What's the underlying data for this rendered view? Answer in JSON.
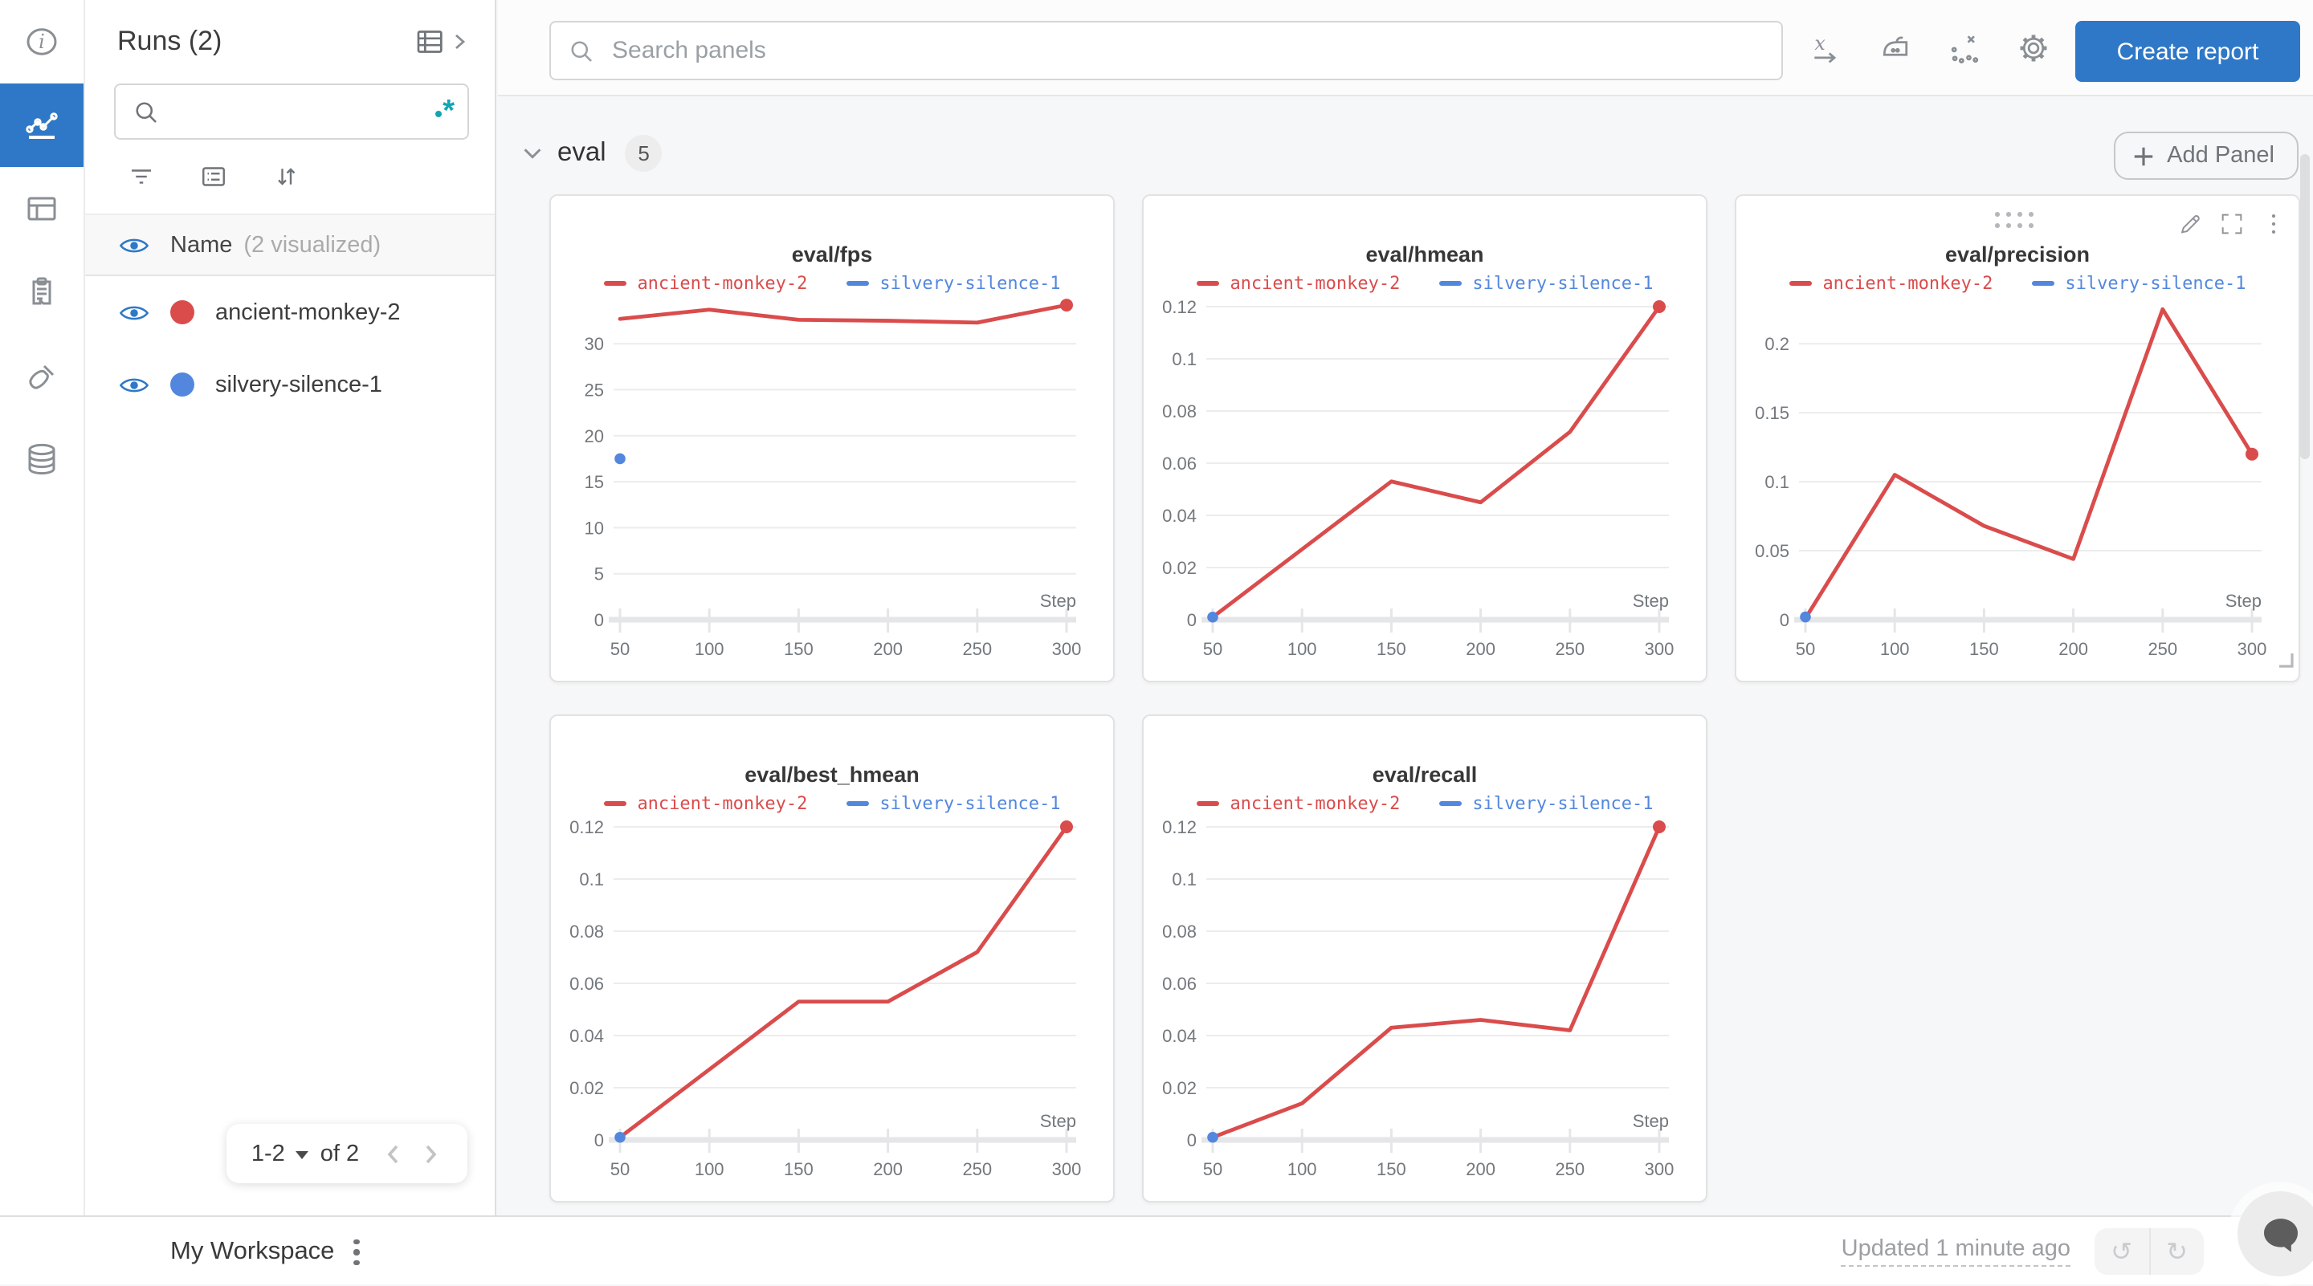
{
  "colors": {
    "accent_blue": "#2e78c7",
    "run_red": "#DA4C4C",
    "run_blue": "#5387DD",
    "regex_teal": "#12a5b2"
  },
  "rail": {
    "items": [
      "info",
      "charts",
      "table",
      "clipboard",
      "brush",
      "database"
    ],
    "active_index": 1
  },
  "runs_panel": {
    "title": "Runs (2)",
    "search_value": "",
    "header": {
      "name_label": "Name",
      "visualized_label": "(2 visualized)"
    },
    "runs": [
      {
        "name": "ancient-monkey-2",
        "color": "#DA4C4C"
      },
      {
        "name": "silvery-silence-1",
        "color": "#5387DD"
      }
    ],
    "pagination": {
      "range_label": "1-2",
      "of_label": "of 2"
    }
  },
  "topbar": {
    "search_placeholder": "Search panels",
    "create_report_label": "Create report"
  },
  "section": {
    "label": "eval",
    "count": "5",
    "add_panel_label": "Add Panel"
  },
  "chart_data": [
    {
      "type": "line",
      "title": "eval/fps",
      "xlabel": "Step",
      "x_ticks": [
        50,
        100,
        150,
        200,
        250,
        300
      ],
      "xlim": [
        50,
        300
      ],
      "y_ticks": [
        "0",
        "5",
        "10",
        "15",
        "20",
        "25",
        "30"
      ],
      "ylim": [
        0,
        36.3
      ],
      "grid": true,
      "legend_position": "top",
      "hovered": false,
      "series": [
        {
          "name": "ancient-monkey-2",
          "color": "#DA4C4C",
          "x": [
            50,
            100,
            150,
            200,
            250,
            300
          ],
          "y": [
            32.7,
            33.7,
            32.6,
            32.5,
            32.3,
            34.2
          ],
          "end_dot": true
        },
        {
          "name": "silvery-silence-1",
          "color": "#5387DD",
          "x": [
            50
          ],
          "y": [
            17.5
          ],
          "points_only": true
        }
      ]
    },
    {
      "type": "line",
      "title": "eval/hmean",
      "xlabel": "Step",
      "x_ticks": [
        50,
        100,
        150,
        200,
        250,
        300
      ],
      "xlim": [
        50,
        300
      ],
      "y_ticks": [
        "0",
        "0.02",
        "0.04",
        "0.06",
        "0.08",
        "0.1",
        "0.12"
      ],
      "ylim": [
        0,
        0.128
      ],
      "grid": true,
      "legend_position": "top",
      "hovered": false,
      "series": [
        {
          "name": "ancient-monkey-2",
          "color": "#DA4C4C",
          "x": [
            50,
            100,
            150,
            200,
            250,
            300
          ],
          "y": [
            0.001,
            0.027,
            0.053,
            0.045,
            0.072,
            0.12
          ],
          "end_dot": true
        },
        {
          "name": "silvery-silence-1",
          "color": "#5387DD",
          "x": [
            50
          ],
          "y": [
            0.001
          ],
          "points_only": true
        }
      ]
    },
    {
      "type": "line",
      "title": "eval/precision",
      "xlabel": "Step",
      "x_ticks": [
        50,
        100,
        150,
        200,
        250,
        300
      ],
      "xlim": [
        50,
        300
      ],
      "y_ticks": [
        "0",
        "0.05",
        "0.1",
        "0.15",
        "0.2"
      ],
      "ylim": [
        0,
        0.242
      ],
      "grid": true,
      "legend_position": "top",
      "hovered": true,
      "series": [
        {
          "name": "ancient-monkey-2",
          "color": "#DA4C4C",
          "x": [
            50,
            100,
            150,
            200,
            250,
            300
          ],
          "y": [
            0.001,
            0.105,
            0.068,
            0.044,
            0.225,
            0.12
          ],
          "end_dot": true
        },
        {
          "name": "silvery-silence-1",
          "color": "#5387DD",
          "x": [
            50
          ],
          "y": [
            0.002
          ],
          "points_only": true
        }
      ]
    },
    {
      "type": "line",
      "title": "eval/best_hmean",
      "xlabel": "Step",
      "x_ticks": [
        50,
        100,
        150,
        200,
        250,
        300
      ],
      "xlim": [
        50,
        300
      ],
      "y_ticks": [
        "0",
        "0.02",
        "0.04",
        "0.06",
        "0.08",
        "0.1",
        "0.12"
      ],
      "ylim": [
        0,
        0.128
      ],
      "grid": true,
      "legend_position": "top",
      "hovered": false,
      "series": [
        {
          "name": "ancient-monkey-2",
          "color": "#DA4C4C",
          "x": [
            50,
            100,
            150,
            200,
            250,
            300
          ],
          "y": [
            0.001,
            0.027,
            0.053,
            0.053,
            0.072,
            0.12
          ],
          "end_dot": true
        },
        {
          "name": "silvery-silence-1",
          "color": "#5387DD",
          "x": [
            50
          ],
          "y": [
            0.001
          ],
          "points_only": true
        }
      ]
    },
    {
      "type": "line",
      "title": "eval/recall",
      "xlabel": "Step",
      "x_ticks": [
        50,
        100,
        150,
        200,
        250,
        300
      ],
      "xlim": [
        50,
        300
      ],
      "y_ticks": [
        "0",
        "0.02",
        "0.04",
        "0.06",
        "0.08",
        "0.1",
        "0.12"
      ],
      "ylim": [
        0,
        0.128
      ],
      "grid": true,
      "legend_position": "top",
      "hovered": false,
      "series": [
        {
          "name": "ancient-monkey-2",
          "color": "#DA4C4C",
          "x": [
            50,
            100,
            150,
            200,
            250,
            300
          ],
          "y": [
            0.001,
            0.014,
            0.043,
            0.046,
            0.042,
            0.12
          ],
          "end_dot": true
        },
        {
          "name": "silvery-silence-1",
          "color": "#5387DD",
          "x": [
            50
          ],
          "y": [
            0.001
          ],
          "points_only": true
        }
      ]
    }
  ],
  "footer": {
    "workspace_label": "My Workspace",
    "updated_label": "Updated 1 minute ago"
  }
}
